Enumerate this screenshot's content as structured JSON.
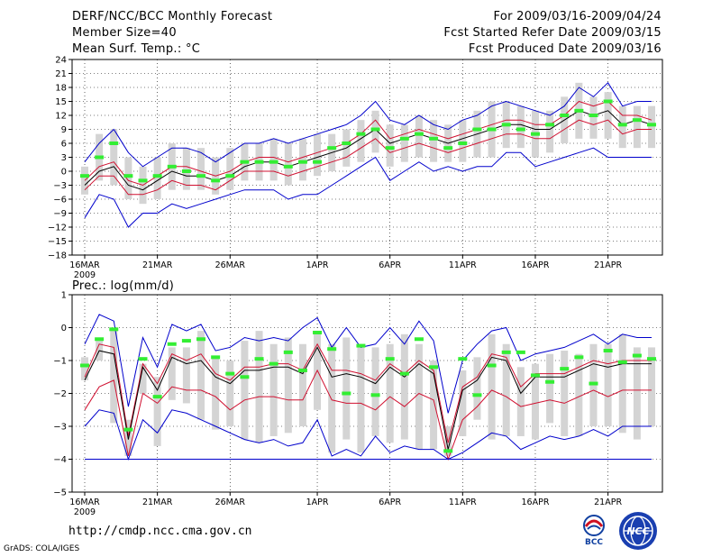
{
  "header": {
    "title": "DERF/NCC/BCC Monthly Forecast",
    "member_size": "Member Size=40",
    "variable": "Mean Surf. Temp.: °C",
    "forecast_period": "For 2009/03/16-2009/04/24",
    "start_date": "Fcst Started Refer Date 2009/03/15",
    "produced_date": "Fcst Produced Date 2009/03/16"
  },
  "footer": {
    "url": "http://cmdp.ncc.cma.gov.cn",
    "credit": "GrADS: COLA/IGES",
    "logo_bcc": "BCC",
    "logo_ncc": "NCC"
  },
  "colors": {
    "envelope": "#0000cc",
    "spread": "#d01030",
    "mean": "#000000",
    "box": "#d4d4d4",
    "obs": "#33ee33",
    "baseline": "#0000cc"
  },
  "chart_data": [
    {
      "type": "line",
      "title": "Mean Surf. Temp.: °C",
      "x_ticks": [
        "16MAR",
        "21MAR",
        "26MAR",
        "1APR",
        "6APR",
        "11APR",
        "16APR",
        "21APR"
      ],
      "x_year": "2009",
      "x_tick_days": [
        1,
        6,
        11,
        17,
        22,
        27,
        32,
        37
      ],
      "ylim": [
        -18,
        24
      ],
      "yticks": [
        -18,
        -15,
        -12,
        -9,
        -6,
        -3,
        0,
        3,
        6,
        9,
        12,
        15,
        18,
        21,
        24
      ],
      "days": [
        1,
        2,
        3,
        4,
        5,
        6,
        7,
        8,
        9,
        10,
        11,
        12,
        13,
        14,
        15,
        16,
        17,
        18,
        19,
        20,
        21,
        22,
        23,
        24,
        25,
        26,
        27,
        28,
        29,
        30,
        31,
        32,
        33,
        34,
        35,
        36,
        37,
        38,
        39,
        40
      ],
      "series": [
        {
          "name": "max",
          "values": [
            2,
            6,
            9,
            4,
            1,
            3,
            5,
            5,
            4,
            2,
            4,
            6,
            6,
            7,
            6,
            7,
            8,
            9,
            10,
            12,
            15,
            11,
            10,
            12,
            10,
            9,
            11,
            12,
            14,
            15,
            14,
            13,
            12,
            14,
            18,
            16,
            19,
            14,
            15,
            15
          ]
        },
        {
          "name": "upper",
          "values": [
            -2,
            1,
            2,
            -2,
            -3,
            -1,
            1,
            1,
            0,
            -1,
            0,
            2,
            3,
            3,
            2,
            3,
            4,
            5,
            6,
            8,
            11,
            7,
            8,
            9,
            8,
            7,
            8,
            9,
            10,
            11,
            11,
            10,
            10,
            12,
            15,
            14,
            15,
            12,
            12,
            11
          ]
        },
        {
          "name": "mean",
          "values": [
            -3,
            0,
            1,
            -3,
            -4,
            -2,
            0,
            -1,
            -1,
            -2,
            -1,
            1,
            2,
            2,
            1,
            2,
            3,
            4,
            5,
            7,
            9,
            6,
            7,
            8,
            7,
            6,
            7,
            8,
            9,
            10,
            10,
            9,
            9,
            11,
            13,
            12,
            13,
            10,
            11,
            10
          ]
        },
        {
          "name": "lower",
          "values": [
            -4,
            -1,
            -1,
            -5,
            -5,
            -4,
            -2,
            -3,
            -3,
            -4,
            -2,
            0,
            0,
            0,
            -1,
            0,
            1,
            2,
            3,
            5,
            7,
            4,
            5,
            6,
            5,
            4,
            5,
            6,
            7,
            8,
            8,
            7,
            7,
            9,
            11,
            10,
            11,
            8,
            9,
            9
          ]
        },
        {
          "name": "min",
          "values": [
            -10,
            -5,
            -6,
            -12,
            -9,
            -9,
            -7,
            -8,
            -7,
            -6,
            -5,
            -4,
            -4,
            -4,
            -6,
            -5,
            -5,
            -3,
            -1,
            1,
            3,
            -2,
            0,
            2,
            0,
            1,
            0,
            1,
            1,
            4,
            4,
            1,
            2,
            3,
            4,
            5,
            3,
            3,
            3,
            3
          ]
        }
      ],
      "box_low": [
        -5,
        -2,
        -3,
        -6,
        -7,
        -6,
        -4,
        -4,
        -4,
        -5,
        -4,
        -2,
        -2,
        -2,
        -3,
        -2,
        -1,
        0,
        1,
        2,
        4,
        1,
        2,
        3,
        2,
        2,
        2,
        3,
        3,
        5,
        5,
        3,
        4,
        6,
        7,
        7,
        7,
        5,
        5,
        5
      ],
      "box_high": [
        1,
        8,
        9,
        3,
        1,
        3,
        6,
        5,
        5,
        3,
        5,
        6,
        6,
        7,
        6,
        7,
        8,
        8,
        9,
        11,
        13,
        10,
        10,
        12,
        11,
        10,
        11,
        13,
        15,
        15,
        14,
        13,
        13,
        16,
        19,
        16,
        17,
        14,
        14,
        14
      ],
      "obs": [
        -1,
        3,
        6,
        -1,
        -2,
        -1,
        1,
        0,
        -1,
        -2,
        -1,
        2,
        2,
        2,
        1,
        2,
        2,
        5,
        6,
        8,
        9,
        5,
        7,
        8,
        7,
        5,
        6,
        9,
        9,
        10,
        9,
        8,
        10,
        12,
        13,
        12,
        15,
        10,
        11,
        10
      ]
    },
    {
      "type": "line",
      "title": "Prec.: log(mm/d)",
      "x_ticks": [
        "16MAR",
        "21MAR",
        "26MAR",
        "1APR",
        "6APR",
        "11APR",
        "16APR",
        "21APR"
      ],
      "x_year": "2009",
      "x_tick_days": [
        1,
        6,
        11,
        17,
        22,
        27,
        32,
        37
      ],
      "ylim": [
        -5,
        1
      ],
      "yticks": [
        -5,
        -4,
        -3,
        -2,
        -1,
        0,
        1
      ],
      "days": [
        1,
        2,
        3,
        4,
        5,
        6,
        7,
        8,
        9,
        10,
        11,
        12,
        13,
        14,
        15,
        16,
        17,
        18,
        19,
        20,
        21,
        22,
        23,
        24,
        25,
        26,
        27,
        28,
        29,
        30,
        31,
        32,
        33,
        34,
        35,
        36,
        37,
        38,
        39,
        40
      ],
      "series": [
        {
          "name": "max",
          "values": [
            -0.5,
            0.4,
            0.2,
            -2.4,
            -0.3,
            -1.2,
            0.1,
            -0.1,
            0.1,
            -0.7,
            -0.6,
            -0.3,
            -0.4,
            -0.3,
            -0.4,
            0.0,
            0.3,
            -0.6,
            0.0,
            -0.6,
            -0.5,
            0.0,
            -0.5,
            0.2,
            -0.4,
            -2.6,
            -1.0,
            -0.5,
            -0.1,
            0.0,
            -1.0,
            -0.8,
            -0.7,
            -0.6,
            -0.4,
            -0.2,
            -0.5,
            -0.2,
            -0.3,
            -0.3
          ]
        },
        {
          "name": "upper",
          "values": [
            -1.5,
            -0.5,
            -0.6,
            -3.3,
            -1.1,
            -1.7,
            -0.8,
            -1.0,
            -0.8,
            -1.4,
            -1.6,
            -1.2,
            -1.2,
            -1.1,
            -1.1,
            -1.3,
            -0.5,
            -1.3,
            -1.3,
            -1.4,
            -1.6,
            -1.1,
            -1.4,
            -1.0,
            -1.3,
            -3.5,
            -1.8,
            -1.5,
            -0.8,
            -0.9,
            -1.8,
            -1.4,
            -1.4,
            -1.4,
            -1.2,
            -1.0,
            -1.1,
            -1.0,
            -1.0,
            -1.0
          ]
        },
        {
          "name": "mean",
          "values": [
            -1.6,
            -0.7,
            -0.8,
            -3.4,
            -1.2,
            -1.9,
            -0.9,
            -1.1,
            -1.0,
            -1.5,
            -1.7,
            -1.3,
            -1.3,
            -1.2,
            -1.2,
            -1.4,
            -0.6,
            -1.5,
            -1.4,
            -1.5,
            -1.7,
            -1.2,
            -1.5,
            -1.1,
            -1.4,
            -3.7,
            -1.9,
            -1.6,
            -0.9,
            -1.0,
            -2.0,
            -1.5,
            -1.5,
            -1.5,
            -1.3,
            -1.1,
            -1.2,
            -1.1,
            -1.1,
            -1.1
          ]
        },
        {
          "name": "lower",
          "values": [
            -2.5,
            -1.8,
            -1.6,
            -3.9,
            -2.0,
            -2.3,
            -1.8,
            -1.9,
            -1.9,
            -2.1,
            -2.5,
            -2.2,
            -2.1,
            -2.1,
            -2.2,
            -2.2,
            -1.3,
            -2.2,
            -2.3,
            -2.3,
            -2.5,
            -2.1,
            -2.4,
            -2.0,
            -2.2,
            -4.0,
            -2.8,
            -2.4,
            -1.9,
            -2.1,
            -2.4,
            -2.3,
            -2.2,
            -2.3,
            -2.1,
            -1.9,
            -2.1,
            -1.9,
            -1.9,
            -1.9
          ]
        },
        {
          "name": "min",
          "values": [
            -3.0,
            -2.5,
            -2.6,
            -4.0,
            -2.8,
            -3.2,
            -2.5,
            -2.6,
            -2.8,
            -3.0,
            -3.2,
            -3.4,
            -3.5,
            -3.4,
            -3.6,
            -3.5,
            -2.8,
            -3.9,
            -3.7,
            -3.9,
            -3.3,
            -3.8,
            -3.6,
            -3.7,
            -3.7,
            -4.0,
            -3.8,
            -3.5,
            -3.2,
            -3.3,
            -3.7,
            -3.5,
            -3.3,
            -3.4,
            -3.3,
            -3.1,
            -3.3,
            -3.0,
            -3.0,
            -3.0
          ]
        }
      ],
      "box_low": [
        -1.6,
        -1.0,
        -2.9,
        -3.9,
        -2.0,
        -3.6,
        -2.2,
        -2.3,
        -2.8,
        -3.1,
        -3.0,
        -3.4,
        -3.5,
        -3.3,
        -3.2,
        -3.0,
        -2.5,
        -3.8,
        -3.4,
        -3.8,
        -3.3,
        -3.5,
        -3.4,
        -3.7,
        -3.7,
        -3.9,
        -3.3,
        -2.8,
        -3.4,
        -3.3,
        -3.3,
        -3.4,
        -2.9,
        -3.3,
        -3.3,
        -3.0,
        -3.0,
        -3.2,
        -3.4,
        -3.0
      ],
      "box_high": [
        -0.9,
        -0.4,
        0.0,
        -2.8,
        -1.1,
        -1.5,
        -0.6,
        -0.6,
        -0.1,
        -0.9,
        -1.0,
        -0.4,
        -0.1,
        -0.5,
        -0.3,
        -0.5,
        -0.1,
        -0.5,
        -0.3,
        -0.5,
        -0.6,
        -0.5,
        -0.2,
        -0.5,
        -1.0,
        -3.0,
        -1.3,
        -0.9,
        -0.2,
        -0.5,
        -1.2,
        -1.1,
        -0.8,
        -0.7,
        -0.8,
        -0.5,
        -0.5,
        -0.2,
        -0.6,
        -0.6
      ],
      "obs": [
        -1.15,
        -0.35,
        -0.05,
        -3.1,
        -0.95,
        -2.1,
        -0.5,
        -0.4,
        -0.35,
        -0.9,
        -1.4,
        -1.5,
        -0.95,
        -1.1,
        -0.75,
        -1.3,
        -0.15,
        -0.65,
        -2.0,
        -0.55,
        -2.05,
        -0.95,
        -1.4,
        -0.35,
        -1.2,
        -3.75,
        -0.95,
        -2.05,
        -1.15,
        -0.75,
        -0.75,
        -1.45,
        -1.65,
        -1.25,
        -0.9,
        -1.7,
        -0.7,
        -1.05,
        -0.85,
        -0.95
      ],
      "floor": -4
    }
  ]
}
